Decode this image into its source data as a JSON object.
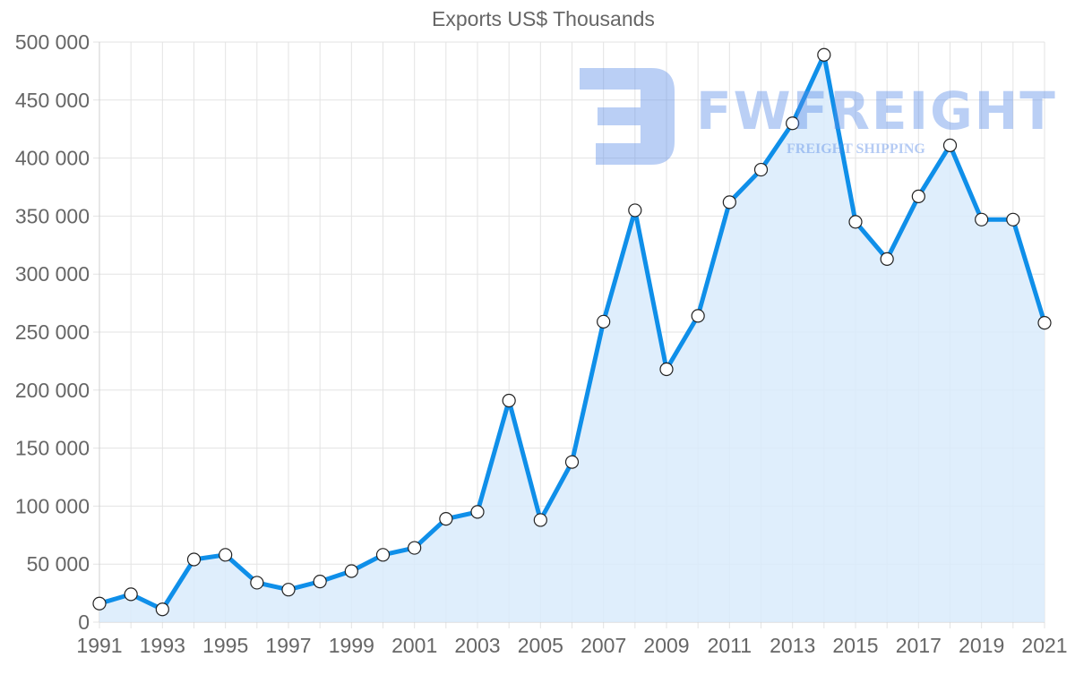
{
  "chart": {
    "title": "Exports US$ Thousands",
    "watermark": {
      "brand": "FWFREIGHT",
      "tagline": "FREIGHT SHIPPING"
    },
    "colors": {
      "line": "#0f8fe9",
      "fill": "#d9ebfc",
      "point_fill": "#ffffff",
      "point_stroke": "#222222",
      "grid": "#e3e3e3",
      "tick_text": "#666666"
    }
  },
  "chart_data": {
    "type": "area",
    "title": "Exports US$ Thousands",
    "xlabel": "",
    "ylabel": "",
    "x": [
      1991,
      1992,
      1993,
      1994,
      1995,
      1996,
      1997,
      1998,
      1999,
      2000,
      2001,
      2002,
      2003,
      2004,
      2005,
      2006,
      2007,
      2008,
      2009,
      2010,
      2011,
      2012,
      2013,
      2014,
      2015,
      2016,
      2017,
      2018,
      2019,
      2020,
      2021
    ],
    "series": [
      {
        "name": "Exports US$ Thousands",
        "values": [
          16000,
          24000,
          11000,
          54000,
          58000,
          34000,
          28000,
          35000,
          44000,
          58000,
          64000,
          89000,
          95000,
          191000,
          88000,
          138000,
          259000,
          355000,
          218000,
          264000,
          362000,
          390000,
          430000,
          489000,
          345000,
          313000,
          367000,
          411000,
          347000,
          347000,
          258000
        ]
      }
    ],
    "x_tick_labels": [
      "1991",
      "1993",
      "1995",
      "1997",
      "1999",
      "2001",
      "2003",
      "2005",
      "2007",
      "2009",
      "2011",
      "2013",
      "2015",
      "2017",
      "2019",
      "2021"
    ],
    "y_tick_labels": [
      "0",
      "50 000",
      "100 000",
      "150 000",
      "200 000",
      "250 000",
      "300 000",
      "350 000",
      "400 000",
      "450 000",
      "500 000"
    ],
    "ylim": [
      0,
      500000
    ],
    "xlim": [
      1991,
      2021
    ],
    "grid": true,
    "legend": "none"
  }
}
